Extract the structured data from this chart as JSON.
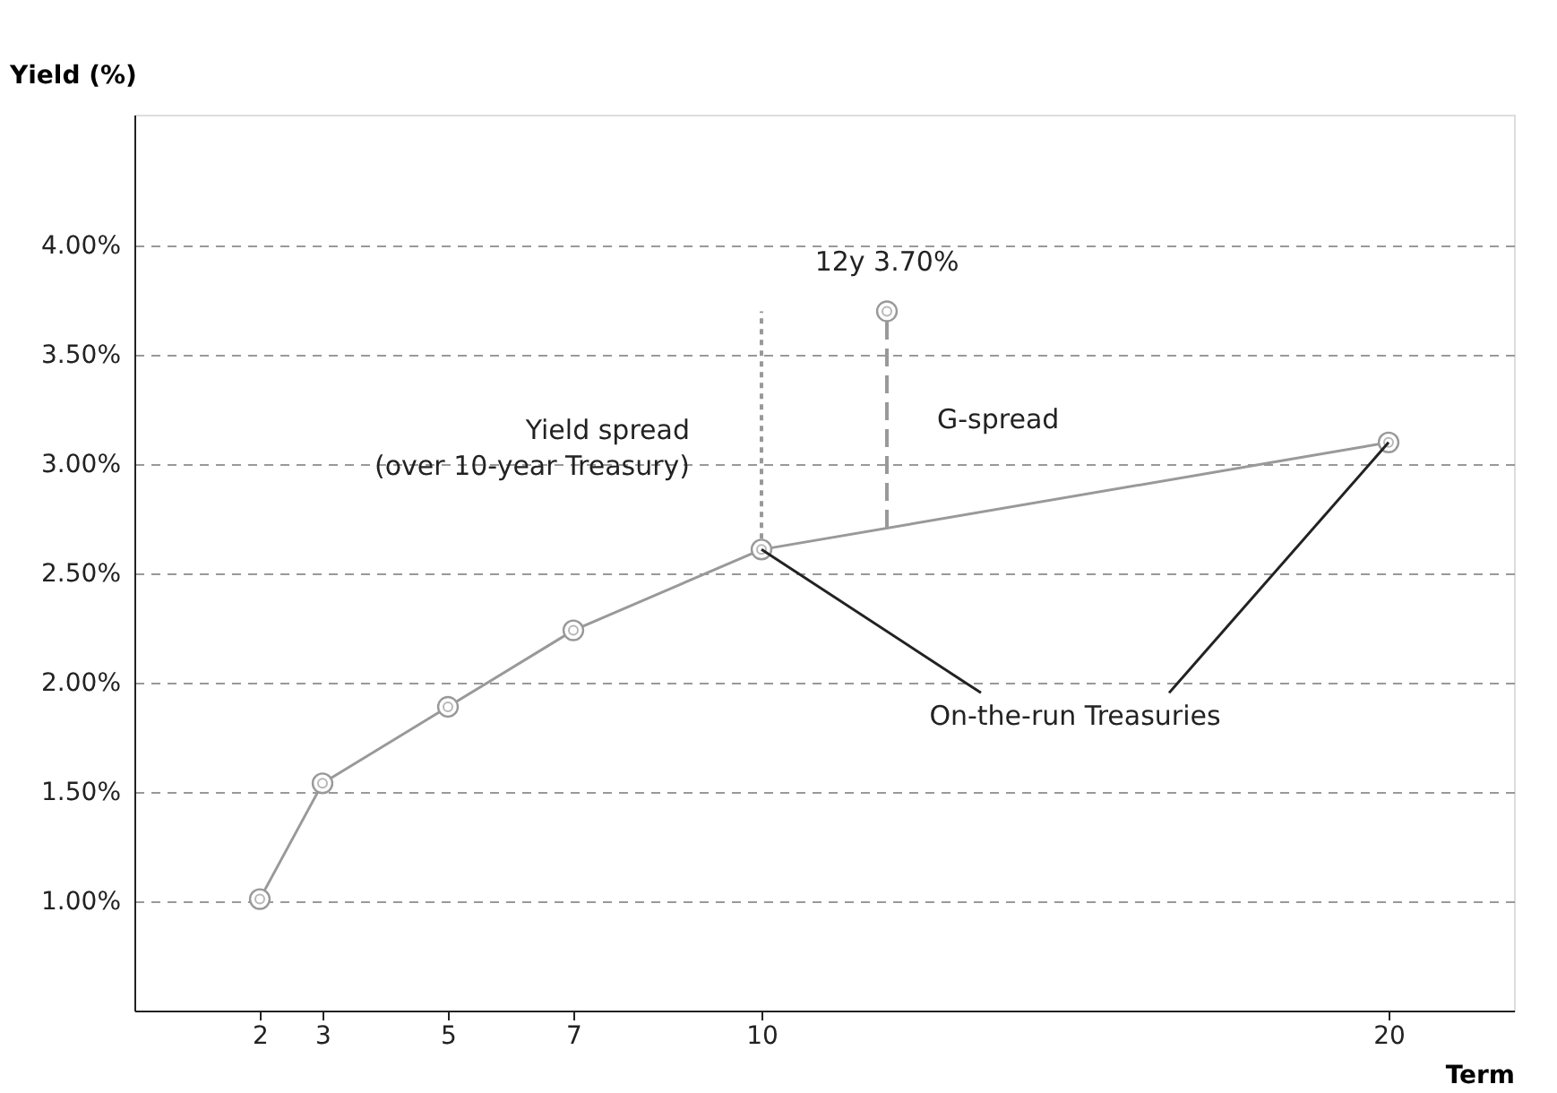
{
  "chart_data": {
    "type": "line",
    "xlabel": "Term",
    "ylabel": "Yield (%)",
    "xlim": [
      0,
      22
    ],
    "xticks": [
      2,
      3,
      5,
      7,
      10,
      20
    ],
    "ylim": [
      0.5,
      4.6
    ],
    "yticks": [
      {
        "value": 1,
        "label": "1.00%"
      },
      {
        "value": 1.5,
        "label": "1.50%"
      },
      {
        "value": 2,
        "label": "2.00%"
      },
      {
        "value": 2.5,
        "label": "2.50%"
      },
      {
        "value": 3,
        "label": "3.00%"
      },
      {
        "value": 3.5,
        "label": "3.50%"
      },
      {
        "value": 4,
        "label": "4.00%"
      }
    ],
    "grid": "y",
    "marker": "circle",
    "line_style": "solid",
    "series": [
      {
        "color": "#999999",
        "x": [
          2,
          3,
          5,
          7,
          10,
          20
        ],
        "values": [
          1.01,
          1.54,
          1.89,
          2.24,
          2.61,
          3.1
        ],
        "errors": [
          null,
          null,
          null,
          null,
          [
            2.61,
            3.7
          ],
          null
        ]
      },
      {
        "type": "scatter",
        "color": "#999999",
        "x": [
          12
        ],
        "values": [
          3.7
        ],
        "errors": [
          [
            2.71,
            3.7
          ]
        ]
      }
    ],
    "annotations": [
      {
        "text": "12y 3.70%",
        "x": 12,
        "y": 3.7
      },
      "Yield spread\n(over 10-year Treasury)",
      "G-spread",
      {
        "text": "On-the-run Treasuries",
        "x": 20,
        "y": 3.1
      }
    ]
  }
}
